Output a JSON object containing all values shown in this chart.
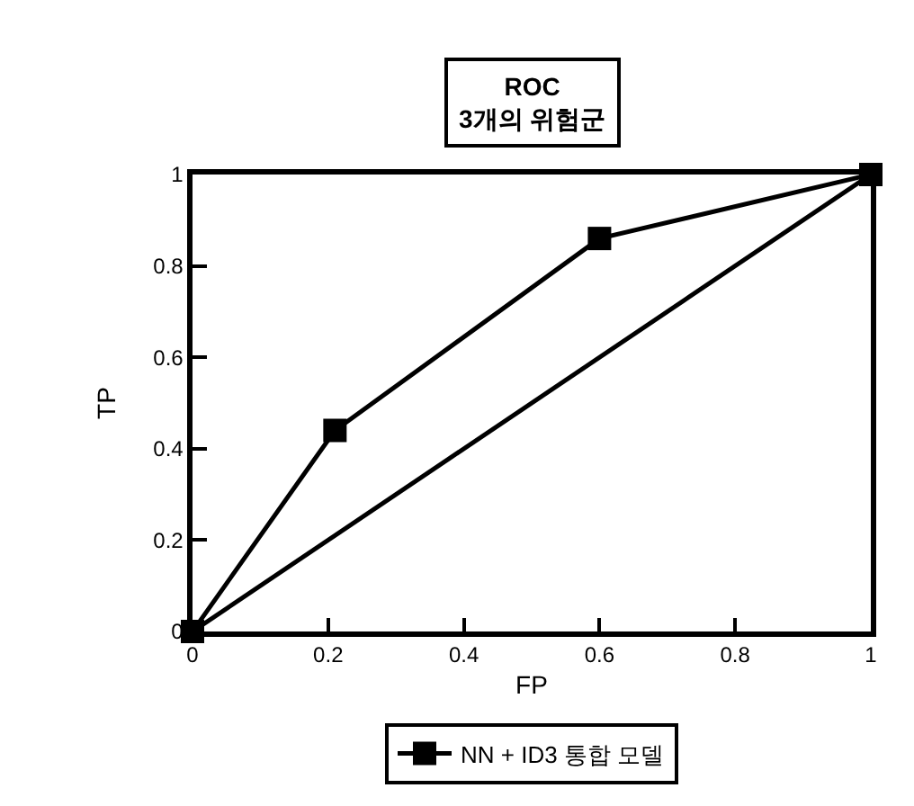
{
  "chart_data": {
    "type": "line",
    "title": "ROC",
    "subtitle": "3개의 위험군",
    "xlabel": "FP",
    "ylabel": "TP",
    "x": [
      0,
      0.21,
      0.6,
      1
    ],
    "series": [
      {
        "name": "NN + ID3 통합 모델",
        "color": "#000000",
        "values": [
          0,
          0.44,
          0.86,
          1
        ],
        "marker": "square"
      },
      {
        "color": "#000000",
        "x": [
          0,
          1
        ],
        "values": [
          0,
          1
        ],
        "marker": "none"
      }
    ],
    "xlim": [
      0,
      1
    ],
    "ylim": [
      0,
      1
    ],
    "xticks": [
      0,
      0.2,
      0.4,
      0.6,
      0.8,
      1
    ],
    "yticks": [
      0,
      0.2,
      0.4,
      0.6,
      0.8,
      1
    ],
    "legend": "bottom",
    "line_style": "solid"
  }
}
